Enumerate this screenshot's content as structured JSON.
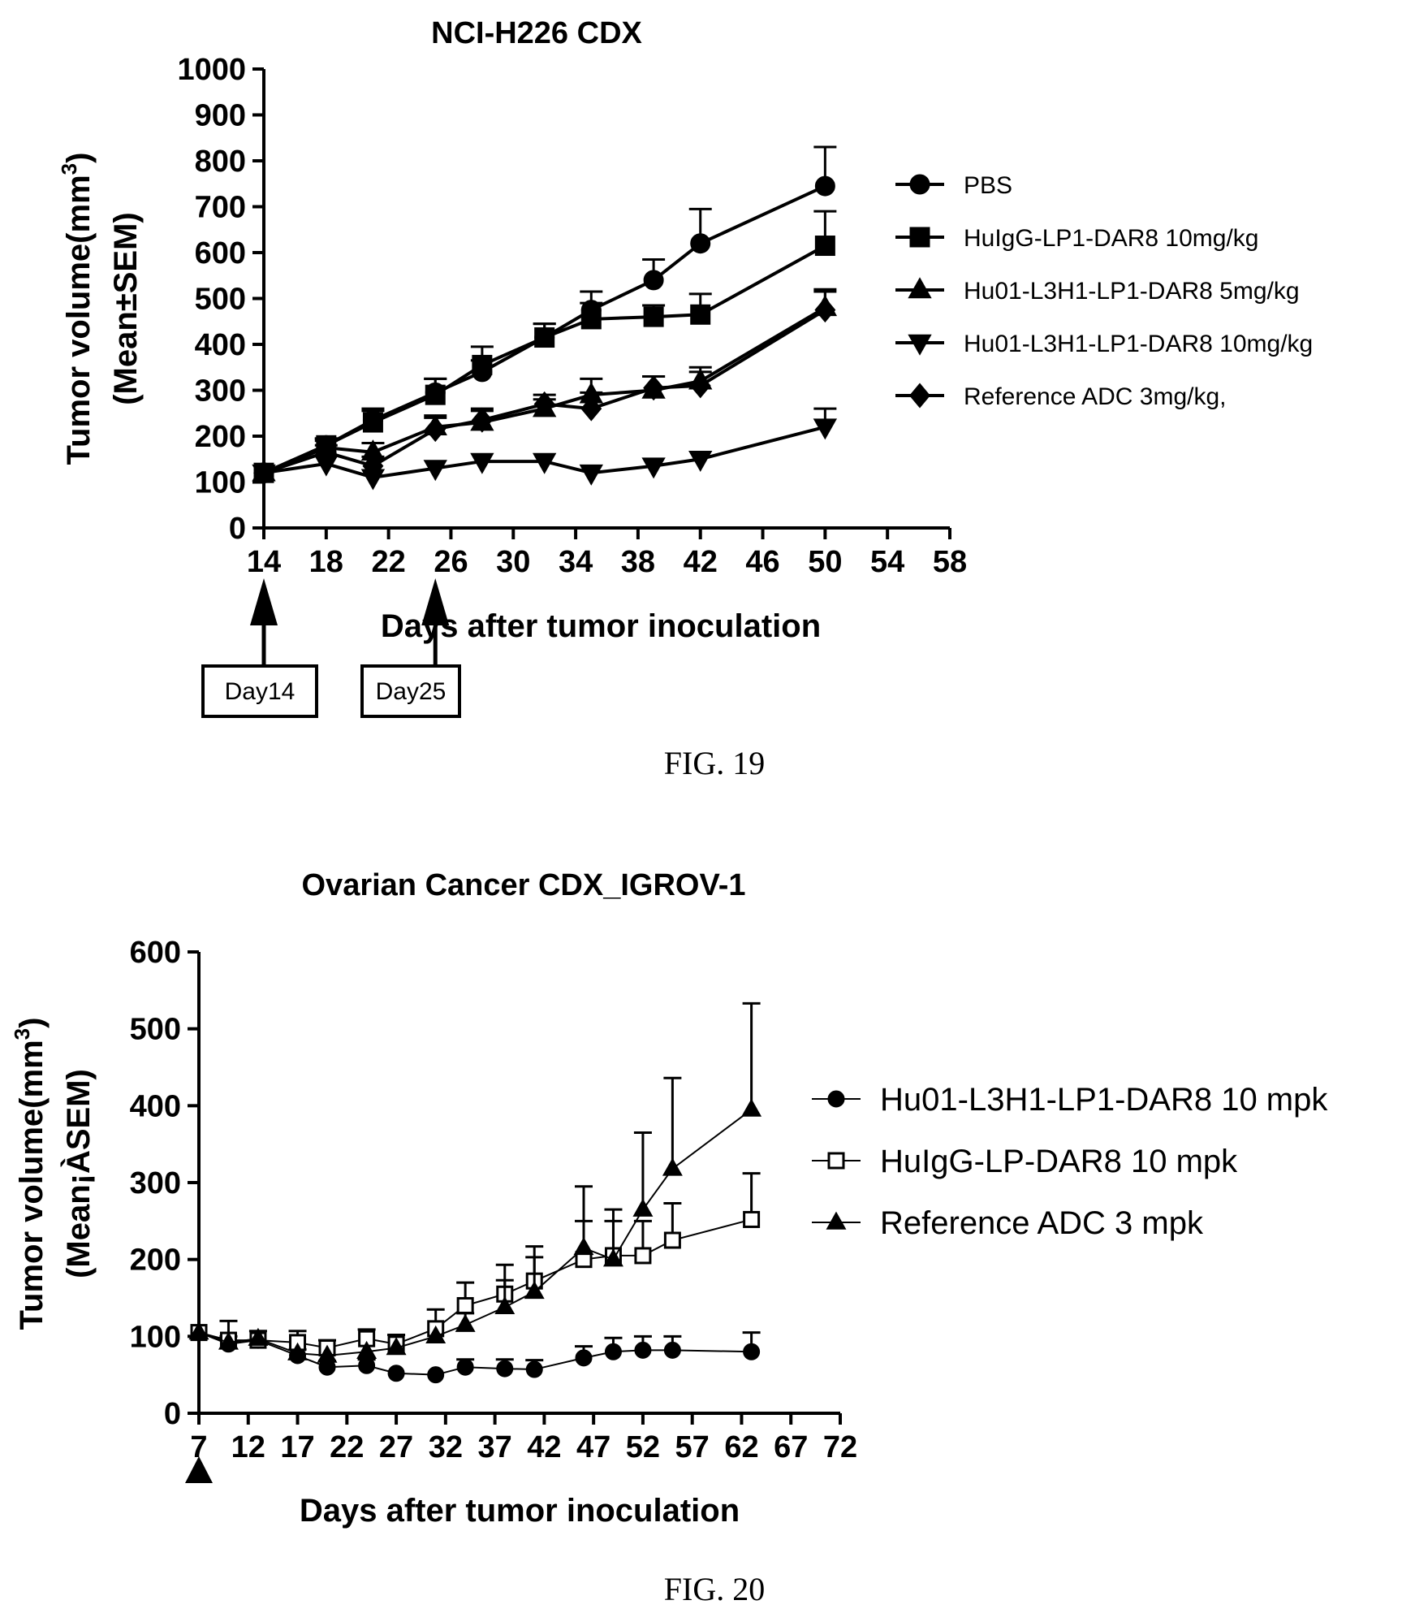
{
  "chart_data": [
    {
      "type": "line",
      "title": "NCI-H226 CDX",
      "xlabel": "Days  after tumor inoculation",
      "ylabel_line1": "Tumor volume(mm",
      "ylabel_sup": "3",
      "ylabel_line1_end": ")",
      "ylabel_line2": "(Mean±SEM)",
      "xlim": [
        14,
        58
      ],
      "ylim": [
        0,
        1000
      ],
      "xticks": [
        "14",
        "18",
        "22",
        "26",
        "30",
        "34",
        "38",
        "42",
        "46",
        "50",
        "54",
        "58"
      ],
      "yticks": [
        "0",
        "100",
        "200",
        "300",
        "400",
        "500",
        "600",
        "700",
        "800",
        "900",
        "1000"
      ],
      "grid": false,
      "legend_position": "right",
      "dosing_annotations": [
        {
          "day": 14,
          "label": "Day14"
        },
        {
          "day": 25,
          "label": "Day25"
        }
      ],
      "series": [
        {
          "name": "PBS",
          "marker": "circle",
          "x": [
            14,
            18,
            21,
            25,
            28,
            32,
            35,
            39,
            42,
            50
          ],
          "y": [
            120,
            180,
            235,
            295,
            340,
            415,
            475,
            540,
            620,
            745
          ],
          "err": [
            0,
            15,
            25,
            30,
            25,
            30,
            40,
            45,
            75,
            85
          ]
        },
        {
          "name": "HuIgG-LP1-DAR8 10mg/kg",
          "marker": "square",
          "x": [
            14,
            18,
            21,
            25,
            28,
            32,
            35,
            39,
            42,
            50
          ],
          "y": [
            120,
            180,
            230,
            290,
            355,
            415,
            455,
            460,
            465,
            615
          ],
          "err": [
            0,
            15,
            25,
            35,
            40,
            30,
            35,
            25,
            45,
            75
          ]
        },
        {
          "name": "Hu01-L3H1-LP1-DAR8 5mg/kg",
          "marker": "triangle-up",
          "x": [
            14,
            18,
            21,
            25,
            28,
            32,
            35,
            39,
            42,
            50
          ],
          "y": [
            120,
            175,
            165,
            220,
            230,
            260,
            290,
            300,
            320,
            480
          ],
          "err": [
            0,
            15,
            20,
            25,
            25,
            20,
            35,
            30,
            30,
            40
          ]
        },
        {
          "name": "Hu01-L3H1-LP1-DAR8 10mg/kg",
          "marker": "triangle-down",
          "x": [
            14,
            18,
            21,
            25,
            28,
            32,
            35,
            39,
            42,
            50
          ],
          "y": [
            120,
            140,
            110,
            130,
            145,
            145,
            120,
            135,
            150,
            220
          ],
          "err": [
            0,
            0,
            0,
            0,
            0,
            0,
            0,
            0,
            0,
            40
          ]
        },
        {
          "name": "Reference ADC 3mg/kg,",
          "marker": "diamond",
          "x": [
            14,
            18,
            21,
            25,
            28,
            32,
            35,
            39,
            42,
            50
          ],
          "y": [
            120,
            165,
            135,
            215,
            235,
            270,
            260,
            305,
            310,
            475
          ],
          "err": [
            0,
            15,
            20,
            25,
            25,
            20,
            35,
            25,
            30,
            40
          ]
        }
      ]
    },
    {
      "type": "line",
      "title": "Ovarian Cancer CDX_IGROV-1",
      "xlabel": "Days  after tumor inoculation",
      "ylabel_line1": "Tumor volume(mm",
      "ylabel_sup": "3",
      "ylabel_line1_end": ")",
      "ylabel_line2": "(Mean¡ÀSEM)",
      "xlim": [
        7,
        72
      ],
      "ylim": [
        0,
        600
      ],
      "xticks": [
        "7",
        "12",
        "17",
        "22",
        "27",
        "32",
        "37",
        "42",
        "47",
        "52",
        "57",
        "62",
        "67",
        "72"
      ],
      "yticks": [
        "0",
        "100",
        "200",
        "300",
        "400",
        "500",
        "600"
      ],
      "grid": false,
      "legend_position": "right",
      "dosing_annotations": [
        {
          "day": 7
        }
      ],
      "series": [
        {
          "name": "Hu01-L3H1-LP1-DAR8 10 mpk",
          "marker": "circle",
          "x": [
            7,
            10,
            13,
            17,
            20,
            24,
            27,
            31,
            34,
            38,
            41,
            46,
            49,
            52,
            55,
            63
          ],
          "y": [
            105,
            90,
            95,
            75,
            60,
            62,
            52,
            50,
            60,
            58,
            57,
            72,
            80,
            82,
            82,
            80
          ],
          "err": [
            0,
            10,
            0,
            8,
            8,
            8,
            0,
            0,
            10,
            12,
            12,
            15,
            18,
            18,
            18,
            25
          ]
        },
        {
          "name": "HuIgG-LP-DAR8 10 mpk",
          "marker": "square-open",
          "x": [
            7,
            10,
            13,
            17,
            20,
            24,
            27,
            31,
            34,
            38,
            41,
            46,
            49,
            52,
            55,
            63
          ],
          "y": [
            105,
            95,
            95,
            92,
            85,
            97,
            90,
            110,
            140,
            155,
            172,
            200,
            205,
            205,
            225,
            252
          ],
          "err": [
            0,
            25,
            12,
            15,
            10,
            12,
            12,
            25,
            30,
            38,
            45,
            50,
            60,
            45,
            48,
            60
          ]
        },
        {
          "name": "Reference ADC 3 mpk",
          "marker": "triangle-up",
          "x": [
            7,
            10,
            13,
            17,
            20,
            24,
            27,
            31,
            34,
            38,
            41,
            46,
            49,
            52,
            55,
            63
          ],
          "y": [
            105,
            92,
            97,
            78,
            75,
            80,
            85,
            100,
            115,
            138,
            158,
            215,
            200,
            265,
            318,
            395
          ],
          "err": [
            0,
            0,
            0,
            0,
            0,
            0,
            0,
            0,
            15,
            35,
            45,
            80,
            50,
            100,
            118,
            138
          ]
        }
      ]
    }
  ],
  "captions": {
    "fig19": "FIG. 19",
    "fig20": "FIG. 20"
  }
}
